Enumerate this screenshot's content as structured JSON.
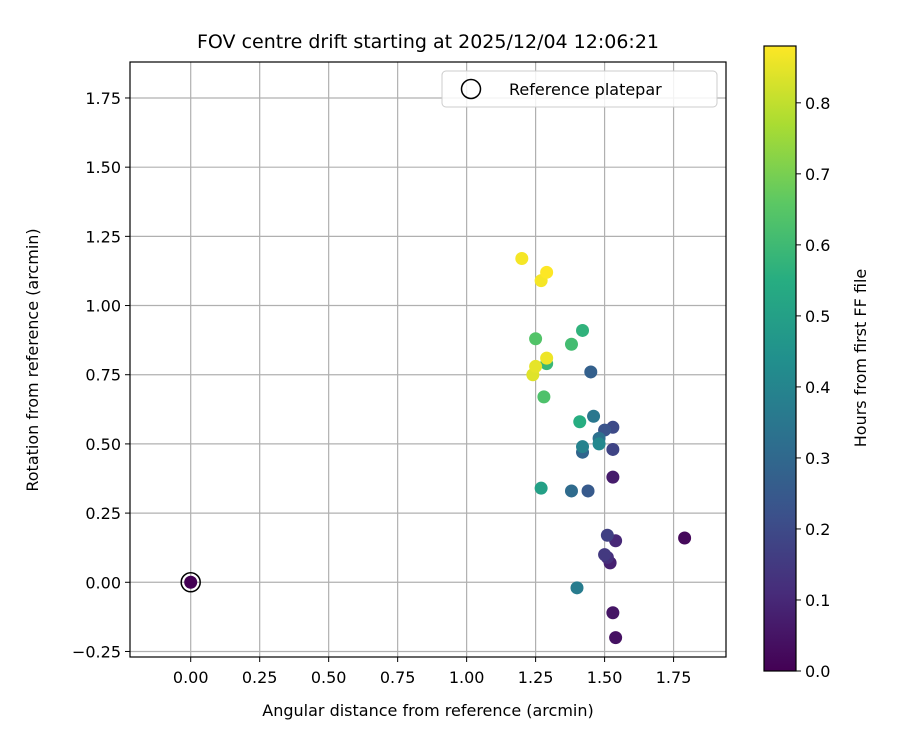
{
  "chart_data": {
    "type": "scatter",
    "title": "FOV centre drift starting at 2025/12/04 12:06:21",
    "xlabel": "Angular distance from reference (arcmin)",
    "ylabel": "Rotation from reference (arcmin)",
    "xlim": [
      -0.22,
      1.94
    ],
    "ylim": [
      -0.27,
      1.88
    ],
    "xticks": [
      0.0,
      0.25,
      0.5,
      0.75,
      1.0,
      1.25,
      1.5,
      1.75
    ],
    "xtick_labels": [
      "0.00",
      "0.25",
      "0.50",
      "0.75",
      "1.00",
      "1.25",
      "1.50",
      "1.75"
    ],
    "yticks": [
      -0.25,
      0.0,
      0.25,
      0.5,
      0.75,
      1.0,
      1.25,
      1.5,
      1.75
    ],
    "ytick_labels": [
      "−0.25",
      "0.00",
      "0.25",
      "0.50",
      "0.75",
      "1.00",
      "1.25",
      "1.50",
      "1.75"
    ],
    "grid": true,
    "legend": {
      "placement": "top-right",
      "entries": [
        "Reference platepar"
      ]
    },
    "reference_point": {
      "x": 0.0,
      "y": 0.0
    },
    "colorbar": {
      "label": "Hours from first FF file",
      "colormap": "viridis",
      "range": [
        0.0,
        0.88
      ],
      "ticks": [
        0.0,
        0.1,
        0.2,
        0.3,
        0.4,
        0.5,
        0.6,
        0.7,
        0.8
      ],
      "tick_labels": [
        "0.0",
        "0.1",
        "0.2",
        "0.3",
        "0.4",
        "0.5",
        "0.6",
        "0.7",
        "0.8"
      ]
    },
    "points": [
      {
        "x": 0.0,
        "y": 0.0,
        "c": 0.0
      },
      {
        "x": 1.79,
        "y": 0.16,
        "c": 0.02
      },
      {
        "x": 1.54,
        "y": -0.2,
        "c": 0.04
      },
      {
        "x": 1.53,
        "y": -0.11,
        "c": 0.05
      },
      {
        "x": 1.53,
        "y": 0.38,
        "c": 0.07
      },
      {
        "x": 1.52,
        "y": 0.07,
        "c": 0.08
      },
      {
        "x": 1.54,
        "y": 0.15,
        "c": 0.1
      },
      {
        "x": 1.51,
        "y": 0.09,
        "c": 0.12
      },
      {
        "x": 1.5,
        "y": 0.1,
        "c": 0.15
      },
      {
        "x": 1.51,
        "y": 0.17,
        "c": 0.17
      },
      {
        "x": 1.53,
        "y": 0.48,
        "c": 0.18
      },
      {
        "x": 1.53,
        "y": 0.56,
        "c": 0.2
      },
      {
        "x": 1.5,
        "y": 0.55,
        "c": 0.23
      },
      {
        "x": 1.44,
        "y": 0.33,
        "c": 0.25
      },
      {
        "x": 1.45,
        "y": 0.76,
        "c": 0.27
      },
      {
        "x": 1.42,
        "y": 0.47,
        "c": 0.29
      },
      {
        "x": 1.38,
        "y": 0.33,
        "c": 0.31
      },
      {
        "x": 1.48,
        "y": 0.52,
        "c": 0.33
      },
      {
        "x": 1.46,
        "y": 0.6,
        "c": 0.35
      },
      {
        "x": 1.4,
        "y": -0.02,
        "c": 0.37
      },
      {
        "x": 1.42,
        "y": 0.49,
        "c": 0.39
      },
      {
        "x": 1.48,
        "y": 0.5,
        "c": 0.41
      },
      {
        "x": 1.27,
        "y": 0.34,
        "c": 0.5
      },
      {
        "x": 1.41,
        "y": 0.58,
        "c": 0.55
      },
      {
        "x": 1.42,
        "y": 0.91,
        "c": 0.57
      },
      {
        "x": 1.29,
        "y": 0.79,
        "c": 0.59
      },
      {
        "x": 1.38,
        "y": 0.86,
        "c": 0.61
      },
      {
        "x": 1.28,
        "y": 0.67,
        "c": 0.63
      },
      {
        "x": 1.25,
        "y": 0.88,
        "c": 0.64
      },
      {
        "x": 1.24,
        "y": 0.75,
        "c": 0.84
      },
      {
        "x": 1.25,
        "y": 0.78,
        "c": 0.85
      },
      {
        "x": 1.29,
        "y": 0.81,
        "c": 0.86
      },
      {
        "x": 1.2,
        "y": 1.17,
        "c": 0.87
      },
      {
        "x": 1.27,
        "y": 1.09,
        "c": 0.87
      },
      {
        "x": 1.29,
        "y": 1.12,
        "c": 0.88
      }
    ]
  }
}
